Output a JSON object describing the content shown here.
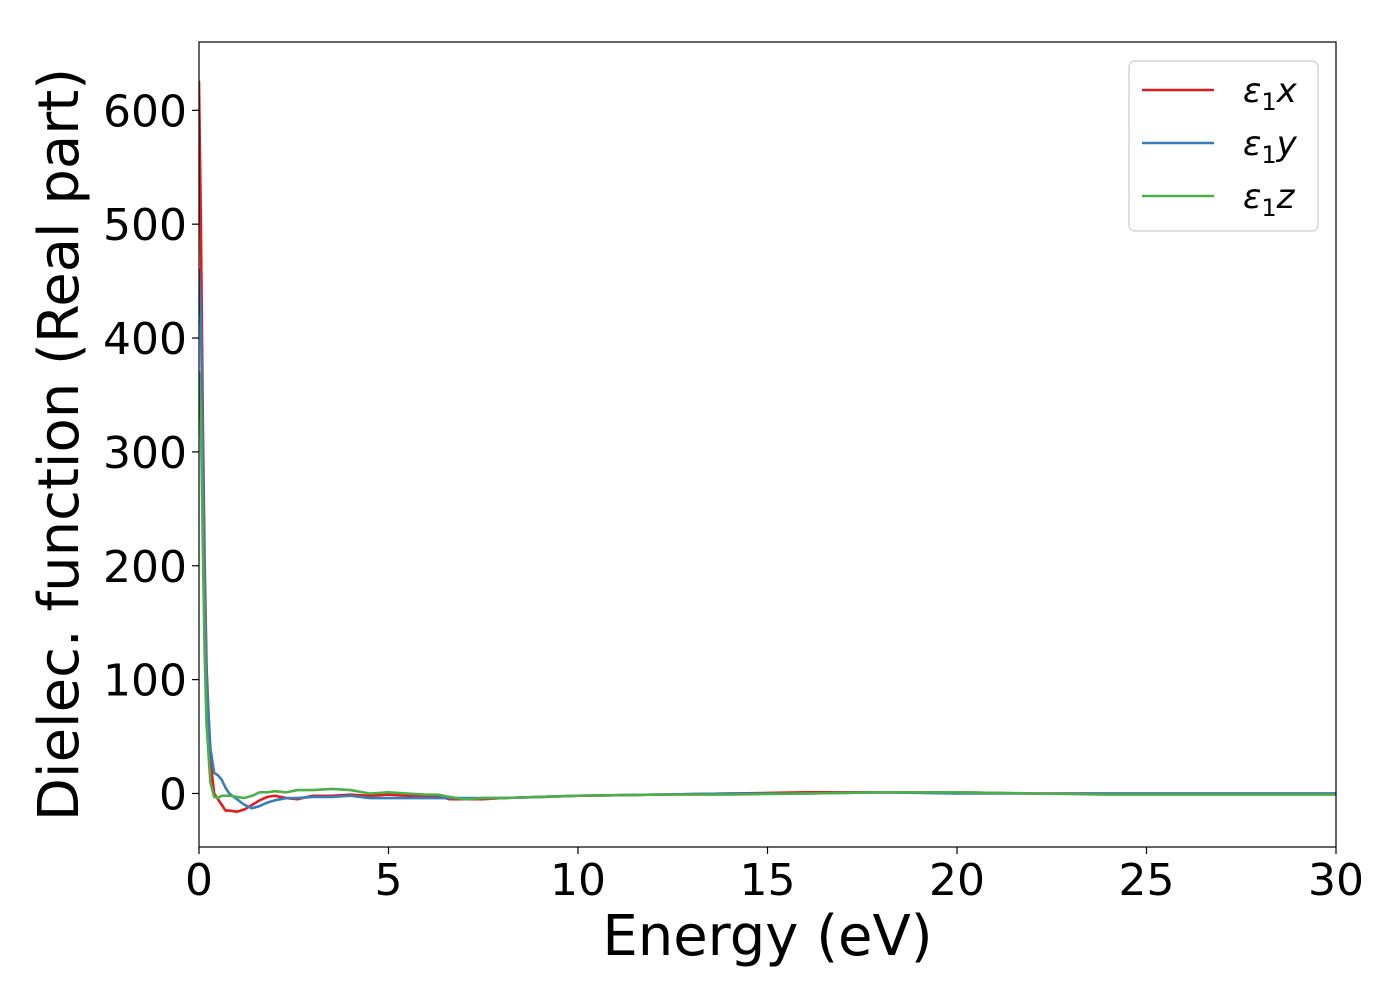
{
  "chart_data": {
    "type": "line",
    "title": "",
    "xlabel": "Energy (eV)",
    "ylabel": "Dielec. function (Real part)",
    "xlim": [
      0,
      30
    ],
    "ylim": [
      -47,
      660
    ],
    "xticks": [
      0,
      5,
      10,
      15,
      20,
      25,
      30
    ],
    "yticks": [
      0,
      100,
      200,
      300,
      400,
      500,
      600
    ],
    "grid": false,
    "legend_position": "top-right",
    "series": [
      {
        "name": "ε₁x",
        "symbol": "ε",
        "subscript": "1",
        "component": "x",
        "color": "#e41a1c",
        "x": [
          0.0,
          0.05,
          0.1,
          0.15,
          0.2,
          0.3,
          0.4,
          0.5,
          0.6,
          0.7,
          0.8,
          1.0,
          1.2,
          1.4,
          1.6,
          1.8,
          2.0,
          2.3,
          2.6,
          3.0,
          3.5,
          4.0,
          4.5,
          5.0,
          5.5,
          6.0,
          6.3,
          6.6,
          7.0,
          7.5,
          8.0,
          9.0,
          10.0,
          12.0,
          14.0,
          16.0,
          18.0,
          20.0,
          22.0,
          24.0,
          26.0,
          28.0,
          30.0
        ],
        "y": [
          625,
          500,
          330,
          200,
          110,
          30,
          0,
          -5,
          -10,
          -15,
          -15,
          -16,
          -14,
          -10,
          -6,
          -3,
          -2,
          -4,
          -5,
          -2,
          -2,
          -1,
          -2,
          -1,
          -2,
          -2,
          -2,
          -5,
          -5,
          -5,
          -4,
          -3,
          -2,
          -1,
          0,
          1,
          1,
          1,
          0,
          0,
          0,
          0,
          0
        ]
      },
      {
        "name": "ε₁y",
        "symbol": "ε",
        "subscript": "1",
        "component": "y",
        "color": "#377eb8",
        "x": [
          0.0,
          0.05,
          0.1,
          0.15,
          0.2,
          0.3,
          0.4,
          0.5,
          0.6,
          0.7,
          0.8,
          1.0,
          1.2,
          1.4,
          1.6,
          1.8,
          2.0,
          2.3,
          2.6,
          3.0,
          3.5,
          4.0,
          4.5,
          5.0,
          5.5,
          6.0,
          6.3,
          6.6,
          7.0,
          7.5,
          8.0,
          9.0,
          10.0,
          12.0,
          14.0,
          16.0,
          18.0,
          20.0,
          22.0,
          24.0,
          26.0,
          28.0,
          30.0
        ],
        "y": [
          460,
          420,
          300,
          180,
          100,
          40,
          18,
          16,
          12,
          5,
          0,
          -5,
          -10,
          -13,
          -11,
          -8,
          -6,
          -4,
          -4,
          -3,
          -3,
          -2,
          -4,
          -4,
          -4,
          -4,
          -4,
          -4,
          -4,
          -4,
          -4,
          -3,
          -2,
          -1,
          0,
          0,
          1,
          0,
          0,
          0,
          0,
          0,
          0
        ]
      },
      {
        "name": "ε₁z",
        "symbol": "ε",
        "subscript": "1",
        "component": "z",
        "color": "#4daf4a",
        "x": [
          0.0,
          0.05,
          0.1,
          0.15,
          0.2,
          0.3,
          0.4,
          0.5,
          0.6,
          0.7,
          0.8,
          1.0,
          1.2,
          1.4,
          1.6,
          1.8,
          2.0,
          2.3,
          2.6,
          3.0,
          3.5,
          4.0,
          4.5,
          5.0,
          5.5,
          6.0,
          6.3,
          6.6,
          7.0,
          7.5,
          8.0,
          9.0,
          10.0,
          12.0,
          14.0,
          16.0,
          18.0,
          20.0,
          22.0,
          24.0,
          26.0,
          28.0,
          30.0
        ],
        "y": [
          370,
          330,
          220,
          120,
          60,
          10,
          -3,
          -4,
          -2,
          -2,
          -2,
          -3,
          -4,
          -2,
          1,
          1,
          2,
          1,
          3,
          3,
          4,
          3,
          0,
          1,
          0,
          -1,
          -1,
          -3,
          -5,
          -4,
          -4,
          -3,
          -2,
          -1,
          -1,
          0,
          1,
          1,
          0,
          -1,
          -1,
          -1,
          -1
        ]
      }
    ]
  }
}
